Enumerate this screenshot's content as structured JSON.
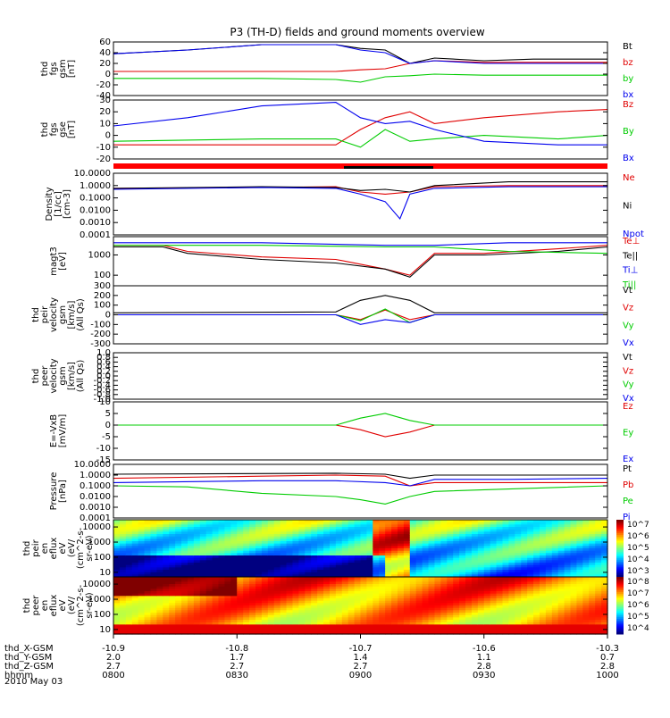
{
  "page": {
    "title": "P3 (TH-D) fields and ground moments overview",
    "date_label": "2010 May 03"
  },
  "colors": {
    "black": "#000000",
    "red": "#e00000",
    "green": "#00cc00",
    "blue": "#0000ee"
  },
  "chart_data": [
    {
      "id": "fgs_gsm",
      "type": "line",
      "ylabel": [
        "thd",
        "fgs",
        "gsm",
        "[nT]"
      ],
      "ylim": [
        -40,
        60
      ],
      "ticks": [
        "60",
        "40",
        "20",
        "0",
        "-20",
        "-40"
      ],
      "series": [
        {
          "name": "Bt",
          "color": "black",
          "x": [
            0,
            0.15,
            0.3,
            0.45,
            0.5,
            0.55,
            0.6,
            0.65,
            0.75,
            0.85,
            1
          ],
          "y": [
            38,
            45,
            55,
            55,
            48,
            45,
            20,
            30,
            25,
            28,
            28
          ]
        },
        {
          "name": "bz",
          "color": "red",
          "x": [
            0,
            0.3,
            0.45,
            0.5,
            0.55,
            0.6,
            0.65,
            0.75,
            0.9,
            1
          ],
          "y": [
            5,
            5,
            5,
            8,
            10,
            20,
            25,
            22,
            22,
            22
          ]
        },
        {
          "name": "by",
          "color": "green",
          "x": [
            0,
            0.3,
            0.45,
            0.5,
            0.55,
            0.6,
            0.65,
            0.75,
            1
          ],
          "y": [
            -8,
            -8,
            -10,
            -15,
            -5,
            -3,
            0,
            -2,
            -2
          ]
        },
        {
          "name": "bx",
          "color": "blue",
          "x": [
            0,
            0.15,
            0.3,
            0.45,
            0.5,
            0.55,
            0.6,
            0.65,
            0.75,
            1
          ],
          "y": [
            38,
            45,
            55,
            55,
            45,
            40,
            20,
            25,
            20,
            20
          ]
        }
      ]
    },
    {
      "id": "fgs_gse",
      "type": "line",
      "ylabel": [
        "thd",
        "fgs",
        "gse",
        "[nT]"
      ],
      "ylim": [
        -20,
        30
      ],
      "ticks": [
        "30",
        "20",
        "10",
        "0",
        "-10",
        "-20"
      ],
      "series": [
        {
          "name": "Bz",
          "color": "red",
          "x": [
            0,
            0.3,
            0.45,
            0.5,
            0.55,
            0.6,
            0.65,
            0.75,
            0.9,
            1
          ],
          "y": [
            -8,
            -8,
            -8,
            5,
            15,
            20,
            10,
            15,
            20,
            22
          ]
        },
        {
          "name": "By",
          "color": "green",
          "x": [
            0,
            0.3,
            0.45,
            0.5,
            0.55,
            0.6,
            0.65,
            0.75,
            0.9,
            1
          ],
          "y": [
            -5,
            -3,
            -3,
            -10,
            5,
            -5,
            -3,
            0,
            -3,
            0
          ]
        },
        {
          "name": "Bx",
          "color": "blue",
          "x": [
            0,
            0.15,
            0.3,
            0.45,
            0.5,
            0.55,
            0.6,
            0.65,
            0.75,
            0.9,
            1
          ],
          "y": [
            8,
            15,
            25,
            28,
            15,
            10,
            12,
            5,
            -5,
            -8,
            -8
          ]
        }
      ]
    },
    {
      "id": "density",
      "type": "line",
      "scale": "log",
      "ylabel": [
        "Density",
        "[1/cc]",
        "[cm-3]"
      ],
      "ylim": [
        0.0001,
        10
      ],
      "ticks": [
        "10.0000",
        "1.0000",
        "0.1000",
        "0.0100",
        "0.0010",
        "0.0001"
      ],
      "series": [
        {
          "name": "Ne",
          "color": "red",
          "x": [
            0,
            0.3,
            0.45,
            0.5,
            0.55,
            0.6,
            0.65,
            0.8,
            1
          ],
          "y": [
            0.6,
            0.7,
            0.8,
            0.3,
            0.2,
            0.3,
            0.8,
            1,
            1
          ]
        },
        {
          "name": "Ni",
          "color": "black",
          "x": [
            0,
            0.3,
            0.45,
            0.5,
            0.55,
            0.6,
            0.65,
            0.8,
            1
          ],
          "y": [
            0.6,
            0.8,
            0.7,
            0.4,
            0.5,
            0.3,
            1,
            2,
            2
          ]
        },
        {
          "name": "Npot",
          "color": "blue",
          "x": [
            0,
            0.3,
            0.45,
            0.5,
            0.55,
            0.58,
            0.6,
            0.65,
            0.8,
            1
          ],
          "y": [
            0.5,
            0.7,
            0.6,
            0.2,
            0.05,
            0.002,
            0.2,
            0.6,
            0.8,
            0.8
          ]
        }
      ]
    },
    {
      "id": "temperature",
      "type": "line",
      "scale": "log",
      "ylabel": [
        "magt3",
        "[eV]"
      ],
      "ylim": [
        30,
        8000
      ],
      "ticks": [
        "1000",
        "100"
      ],
      "tick_values": [
        1000,
        100
      ],
      "series": [
        {
          "name": "Te⊥",
          "color": "red",
          "x": [
            0,
            0.1,
            0.15,
            0.3,
            0.45,
            0.55,
            0.6,
            0.65,
            0.75,
            0.9,
            1
          ],
          "y": [
            3000,
            3000,
            1500,
            800,
            600,
            200,
            100,
            1200,
            1200,
            2000,
            3000
          ]
        },
        {
          "name": "Te||",
          "color": "black",
          "x": [
            0,
            0.1,
            0.15,
            0.3,
            0.45,
            0.55,
            0.6,
            0.65,
            0.75,
            0.9,
            1
          ],
          "y": [
            2500,
            2500,
            1200,
            600,
            400,
            200,
            80,
            1000,
            1000,
            1500,
            2500
          ]
        },
        {
          "name": "Ti⊥",
          "color": "blue",
          "x": [
            0,
            0.3,
            0.55,
            0.65,
            0.8,
            1
          ],
          "y": [
            4000,
            4000,
            3000,
            3000,
            4000,
            4000
          ]
        },
        {
          "name": "Ti||",
          "color": "green",
          "x": [
            0,
            0.3,
            0.55,
            0.65,
            0.8,
            1
          ],
          "y": [
            3000,
            3000,
            2500,
            2500,
            1500,
            1200
          ]
        }
      ]
    },
    {
      "id": "peir_velocity",
      "type": "line",
      "ylabel": [
        "thd",
        "peir",
        "velocity",
        "gsm",
        "[km/s]",
        "(All Qs)"
      ],
      "ylim": [
        -300,
        300
      ],
      "ticks": [
        "300",
        "200",
        "100",
        "0",
        "-100",
        "-200",
        "-300"
      ],
      "series": [
        {
          "name": "Vt",
          "color": "black",
          "x": [
            0,
            0.45,
            0.5,
            0.55,
            0.6,
            0.65,
            1
          ],
          "y": [
            20,
            30,
            150,
            200,
            150,
            20,
            20
          ]
        },
        {
          "name": "Vz",
          "color": "red",
          "x": [
            0,
            0.45,
            0.5,
            0.55,
            0.6,
            0.65,
            1
          ],
          "y": [
            0,
            0,
            -50,
            50,
            -50,
            0,
            0
          ]
        },
        {
          "name": "Vy",
          "color": "green",
          "x": [
            0,
            0.45,
            0.5,
            0.55,
            0.6,
            0.65,
            1
          ],
          "y": [
            0,
            0,
            -60,
            60,
            -80,
            0,
            0
          ]
        },
        {
          "name": "Vx",
          "color": "blue",
          "x": [
            0,
            0.45,
            0.5,
            0.55,
            0.6,
            0.65,
            1
          ],
          "y": [
            0,
            0,
            -100,
            -50,
            -80,
            0,
            0
          ]
        }
      ]
    },
    {
      "id": "peer_velocity",
      "type": "line",
      "ylabel": [
        "thd",
        "peer",
        "velocity",
        "gsm",
        "[km/s]",
        "(All Qs)"
      ],
      "ylim": [
        -1.0,
        1.0
      ],
      "ticks": [
        "1.0",
        "0.8",
        "0.6",
        "0.4",
        "0.2",
        "0.0",
        "-0.2",
        "-0.4",
        "-0.6",
        "-0.8",
        "-1.0"
      ],
      "series": [
        {
          "name": "Vt",
          "color": "black",
          "x": [],
          "y": []
        },
        {
          "name": "Vz",
          "color": "red",
          "x": [],
          "y": []
        },
        {
          "name": "Vy",
          "color": "green",
          "x": [],
          "y": []
        },
        {
          "name": "Vx",
          "color": "blue",
          "x": [],
          "y": []
        }
      ]
    },
    {
      "id": "efield",
      "type": "line",
      "ylabel": [
        "E=-VxB",
        "[mV/m]"
      ],
      "ylim": [
        -15,
        10
      ],
      "ticks": [
        "10",
        "5",
        "0",
        "-5",
        "-10",
        "-15"
      ],
      "series": [
        {
          "name": "Ez",
          "color": "red",
          "x": [
            0,
            0.45,
            0.5,
            0.55,
            0.6,
            0.65,
            1
          ],
          "y": [
            0,
            0,
            -2,
            -5,
            -3,
            0,
            0
          ]
        },
        {
          "name": "Ey",
          "color": "green",
          "x": [
            0,
            0.45,
            0.5,
            0.55,
            0.6,
            0.65,
            1
          ],
          "y": [
            0,
            0,
            3,
            5,
            2,
            0,
            0
          ]
        },
        {
          "name": "Ex",
          "color": "blue",
          "x": [],
          "y": []
        }
      ]
    },
    {
      "id": "pressure",
      "type": "line",
      "scale": "log",
      "ylabel": [
        "Pressure",
        "[nPa]"
      ],
      "ylim": [
        0.0001,
        10
      ],
      "ticks": [
        "10.0000",
        "1.0000",
        "0.1000",
        "0.0100",
        "0.0010",
        "0.0001"
      ],
      "series": [
        {
          "name": "Pt",
          "color": "black",
          "x": [
            0,
            0.45,
            0.55,
            0.6,
            0.65,
            1
          ],
          "y": [
            1.2,
            1.5,
            1.2,
            0.5,
            1,
            1
          ]
        },
        {
          "name": "Pb",
          "color": "red",
          "x": [
            0,
            0.3,
            0.45,
            0.55,
            0.6,
            0.65,
            0.8,
            1
          ],
          "y": [
            0.5,
            0.8,
            1,
            0.8,
            0.1,
            0.2,
            0.2,
            0.2
          ]
        },
        {
          "name": "Pe",
          "color": "green",
          "x": [
            0,
            0.15,
            0.3,
            0.45,
            0.5,
            0.55,
            0.6,
            0.65,
            0.8,
            1
          ],
          "y": [
            0.1,
            0.08,
            0.02,
            0.01,
            0.005,
            0.002,
            0.01,
            0.03,
            0.05,
            0.1
          ]
        },
        {
          "name": "Pi",
          "color": "blue",
          "x": [
            0,
            0.3,
            0.45,
            0.55,
            0.6,
            0.65,
            0.8,
            1
          ],
          "y": [
            0.2,
            0.3,
            0.3,
            0.2,
            0.1,
            0.4,
            0.4,
            0.5
          ]
        }
      ]
    },
    {
      "id": "peir_spec",
      "type": "heatmap",
      "scale": "log",
      "ylabel": [
        "thd",
        "peir",
        "en",
        "eflux",
        "eV",
        "(eV/",
        "(cm^2-s-",
        "sr-eV)"
      ],
      "ylim": [
        5,
        30000
      ],
      "ticks": [
        "10000",
        "1000",
        "100",
        "10"
      ],
      "tick_values": [
        10000,
        1000,
        100,
        10
      ],
      "colorbar": {
        "min_exp": 3,
        "max_exp": 7,
        "labels": [
          "10^7",
          "10^6",
          "10^5",
          "10^4",
          "10^3"
        ]
      }
    },
    {
      "id": "peer_spec",
      "type": "heatmap",
      "scale": "log",
      "ylabel": [
        "thd",
        "peer",
        "en",
        "eflux",
        "eV",
        "(eV/",
        "(cm^2-s-",
        "sr-eV)"
      ],
      "ylim": [
        5,
        30000
      ],
      "ticks": [
        "10000",
        "1000",
        "100",
        "10"
      ],
      "tick_values": [
        10000,
        1000,
        100,
        10
      ],
      "colorbar": {
        "min_exp": 4,
        "max_exp": 8,
        "labels": [
          "10^8",
          "10^7",
          "10^6",
          "10^5",
          "10^4"
        ]
      }
    }
  ],
  "x_axis": {
    "row_labels": [
      "thd_X-GSM",
      "thd_Y-GSM",
      "thd_Z-GSM",
      "hhmm"
    ],
    "ticks": [
      {
        "values": [
          "-10.9",
          "2.0",
          "2.7",
          "0800"
        ]
      },
      {
        "values": [
          "-10.8",
          "1.7",
          "2.7",
          "0830"
        ]
      },
      {
        "values": [
          "-10.7",
          "1.4",
          "2.7",
          "0900"
        ]
      },
      {
        "values": [
          "-10.6",
          "1.1",
          "2.8",
          "0930"
        ]
      },
      {
        "values": [
          "-10.3",
          "0.7",
          "2.8",
          "1000"
        ]
      }
    ]
  }
}
